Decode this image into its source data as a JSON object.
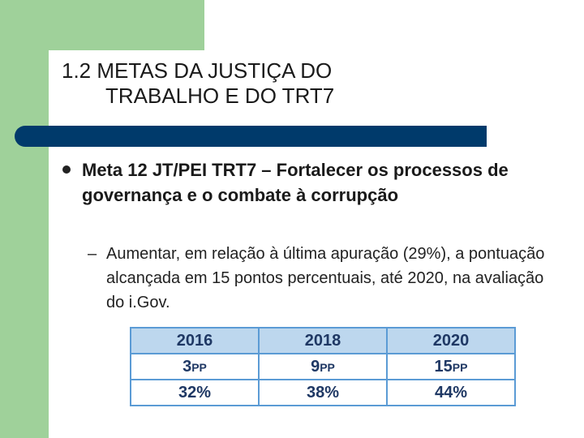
{
  "title": {
    "line1": "1.2 METAS DA JUSTIÇA DO",
    "line2": "TRABALHO E DO TRT7"
  },
  "bullet": {
    "text": "Meta 12 JT/PEI TRT7 – Fortalecer os processos de governança e o combate à corrupção"
  },
  "sub_bullet": {
    "marker": "–",
    "text": "Aumentar, em relação à última apuração (29%), a pontuação alcançada em 15 pontos percentuais, até 2020, na avaliação do i.Gov."
  },
  "table": {
    "headers": [
      "2016",
      "2018",
      "2020"
    ],
    "points": [
      {
        "value": "3",
        "unit": "PP"
      },
      {
        "value": "9",
        "unit": "PP"
      },
      {
        "value": "15",
        "unit": "PP"
      }
    ],
    "percents": [
      "32%",
      "38%",
      "44%"
    ]
  },
  "colors": {
    "green_accent": "#9fd19a",
    "title_bar": "#003a6b",
    "table_header_bg": "#bdd7ee",
    "table_border": "#5b9bd5",
    "table_text": "#1f3864"
  }
}
